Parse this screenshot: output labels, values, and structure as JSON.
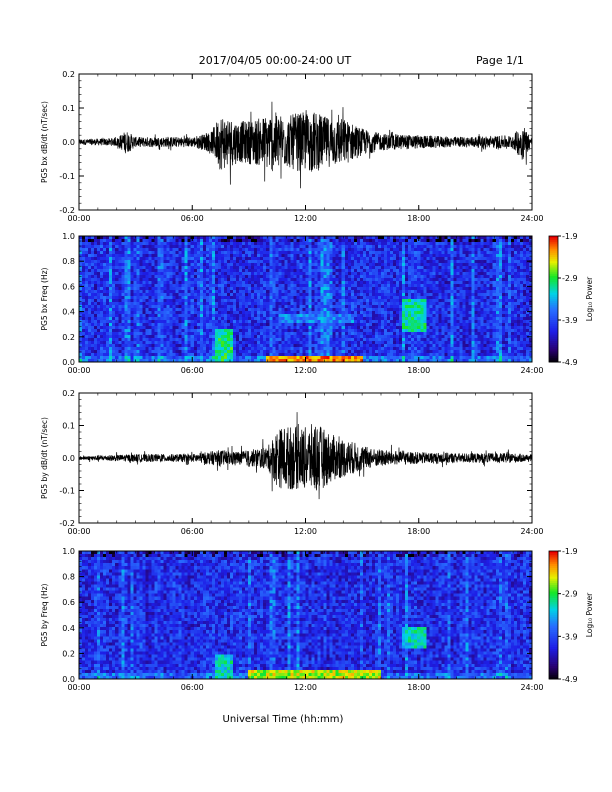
{
  "header": {
    "title": "2017/04/05  00:00-24:00 UT",
    "page": "Page 1/1"
  },
  "footer": {
    "xlabel": "Universal Time (hh:mm)"
  },
  "chart_data": [
    {
      "type": "line",
      "ylabel": "PG5 bx dB/dt (nT/sec)",
      "xlim": [
        "00:00",
        "24:00"
      ],
      "ylim": [
        -0.2,
        0.2
      ],
      "x_ticks": [
        "00:00",
        "06:00",
        "12:00",
        "18:00",
        "24:00"
      ],
      "y_ticks": [
        "0.2",
        "0.1",
        "0.0",
        "-0.1",
        "-0.2"
      ],
      "series_color": "#000000",
      "activity_envelope": {
        "x_hours": [
          0,
          2,
          2.5,
          3,
          6,
          7,
          7.5,
          8.5,
          9.5,
          10.3,
          11,
          11.5,
          12.5,
          13,
          14,
          15,
          16,
          18,
          20,
          23,
          23.5,
          24
        ],
        "amplitude": [
          0.008,
          0.012,
          0.035,
          0.015,
          0.015,
          0.03,
          0.085,
          0.06,
          0.07,
          0.09,
          0.075,
          0.085,
          0.09,
          0.075,
          0.07,
          0.04,
          0.025,
          0.02,
          0.015,
          0.02,
          0.055,
          0.01
        ]
      }
    },
    {
      "type": "heatmap",
      "ylabel": "PG5 bx Freq (Hz)",
      "xlim": [
        "00:00",
        "24:00"
      ],
      "ylim": [
        0.0,
        1.0
      ],
      "x_ticks": [
        "00:00",
        "06:00",
        "12:00",
        "18:00",
        "24:00"
      ],
      "y_ticks": [
        "1.0",
        "0.8",
        "0.6",
        "0.4",
        "0.2",
        "0.0"
      ],
      "colorbar": {
        "label": "Log₁₀ Power",
        "ticks": [
          "-1.9",
          "-2.9",
          "-3.9",
          "-4.9"
        ],
        "range": [
          -4.9,
          -1.9
        ]
      },
      "features": [
        {
          "kind": "low-frequency band",
          "x_hours": [
            10,
            15
          ],
          "freq_hz": [
            0.0,
            0.05
          ],
          "log_power": -2.2
        },
        {
          "kind": "burst",
          "x_hours": [
            7.2,
            8.2
          ],
          "freq_hz": [
            0.0,
            0.25
          ],
          "log_power": -3.0
        },
        {
          "kind": "band",
          "x_hours": [
            10.5,
            14.5
          ],
          "freq_hz": [
            0.3,
            0.38
          ],
          "log_power": -3.6
        },
        {
          "kind": "band",
          "x_hours": [
            17.2,
            18.4
          ],
          "freq_hz": [
            0.25,
            0.5
          ],
          "log_power": -3.1
        }
      ]
    },
    {
      "type": "line",
      "ylabel": "PG5 by dB/dt (nT/sec)",
      "xlim": [
        "00:00",
        "24:00"
      ],
      "ylim": [
        -0.2,
        0.2
      ],
      "x_ticks": [
        "00:00",
        "06:00",
        "12:00",
        "18:00",
        "24:00"
      ],
      "y_ticks": [
        "0.2",
        "0.1",
        "0.0",
        "-0.1",
        "-0.2"
      ],
      "series_color": "#000000",
      "activity_envelope": {
        "x_hours": [
          0,
          2,
          3,
          6,
          7.5,
          8.5,
          10,
          10.5,
          11,
          12,
          12.5,
          13.5,
          14.5,
          15.5,
          17,
          20,
          23,
          24
        ],
        "amplitude": [
          0.006,
          0.01,
          0.012,
          0.012,
          0.025,
          0.02,
          0.035,
          0.09,
          0.1,
          0.095,
          0.11,
          0.07,
          0.05,
          0.03,
          0.02,
          0.015,
          0.015,
          0.01
        ]
      }
    },
    {
      "type": "heatmap",
      "ylabel": "PG5 by Freq (Hz)",
      "xlim": [
        "00:00",
        "24:00"
      ],
      "ylim": [
        0.0,
        1.0
      ],
      "x_ticks": [
        "00:00",
        "06:00",
        "12:00",
        "18:00",
        "24:00"
      ],
      "y_ticks": [
        "1.0",
        "0.8",
        "0.6",
        "0.4",
        "0.2",
        "0.0"
      ],
      "colorbar": {
        "label": "Log₁₀ Power",
        "ticks": [
          "-1.9",
          "-2.9",
          "-3.9",
          "-4.9"
        ],
        "range": [
          -4.9,
          -1.9
        ]
      },
      "features": [
        {
          "kind": "low-frequency band",
          "x_hours": [
            9,
            16
          ],
          "freq_hz": [
            0.0,
            0.06
          ],
          "log_power": -2.6
        },
        {
          "kind": "burst",
          "x_hours": [
            7.2,
            8.2
          ],
          "freq_hz": [
            0.0,
            0.2
          ],
          "log_power": -3.2
        },
        {
          "kind": "band",
          "x_hours": [
            17.2,
            18.4
          ],
          "freq_hz": [
            0.25,
            0.4
          ],
          "log_power": -3.2
        }
      ]
    }
  ]
}
